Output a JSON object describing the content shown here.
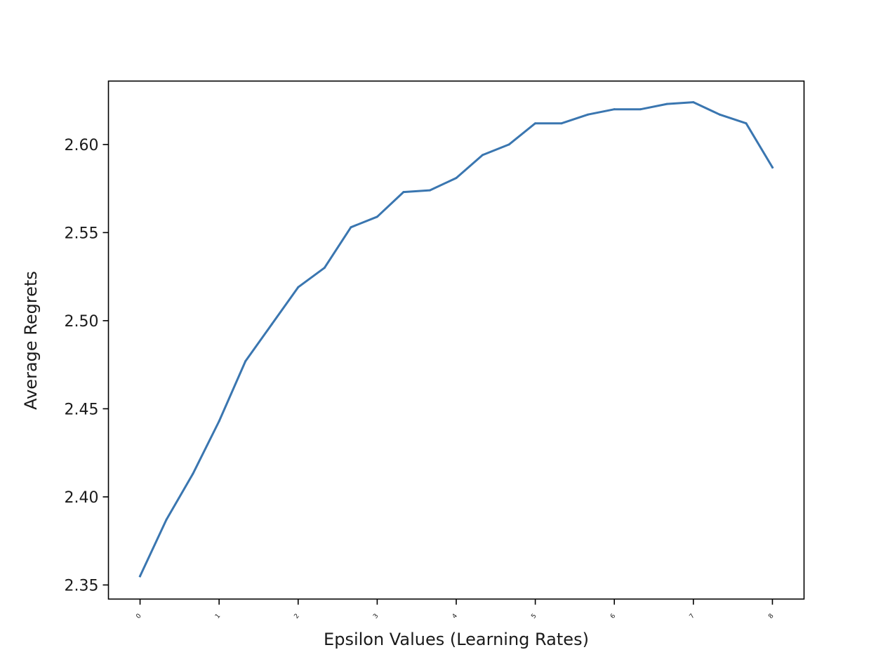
{
  "chart_data": {
    "type": "line",
    "title": "",
    "xlabel": "Epsilon Values (Learning Rates)",
    "ylabel": "Average Regrets",
    "xlim": [
      -0.4,
      8.4
    ],
    "ylim": [
      2.342,
      2.636
    ],
    "x_ticks": [
      0,
      1,
      2,
      3,
      4,
      5,
      6,
      7,
      8
    ],
    "x_tick_labels": [
      "0",
      "1",
      "2",
      "3",
      "4",
      "5",
      "6",
      "7",
      "8"
    ],
    "y_ticks": [
      2.35,
      2.4,
      2.45,
      2.5,
      2.55,
      2.6
    ],
    "y_tick_labels": [
      "2.35",
      "2.40",
      "2.45",
      "2.50",
      "2.55",
      "2.60"
    ],
    "grid": false,
    "legend": "none",
    "series": [
      {
        "color": "#3a76b0",
        "x": [
          0,
          0.333,
          0.667,
          1,
          1.333,
          1.667,
          2,
          2.333,
          2.667,
          3,
          3.333,
          3.667,
          4,
          4.333,
          4.667,
          5,
          5.333,
          5.667,
          6,
          6.333,
          6.667,
          7,
          7.333,
          7.667,
          8
        ],
        "y": [
          2.355,
          2.387,
          2.413,
          2.443,
          2.477,
          2.498,
          2.519,
          2.53,
          2.553,
          2.559,
          2.573,
          2.574,
          2.581,
          2.594,
          2.6,
          2.612,
          2.612,
          2.617,
          2.62,
          2.62,
          2.623,
          2.624,
          2.617,
          2.612,
          2.587
        ]
      }
    ]
  }
}
